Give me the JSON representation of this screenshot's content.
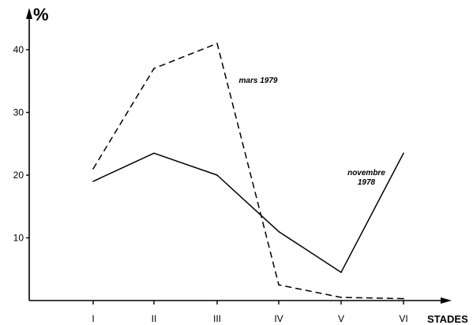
{
  "chart_data": {
    "type": "line",
    "title": "",
    "xlabel": "STADES",
    "ylabel": "%",
    "categories": [
      "I",
      "II",
      "III",
      "IV",
      "V",
      "VI"
    ],
    "ylim": [
      0,
      45
    ],
    "yticks": [
      10,
      20,
      30,
      40
    ],
    "grid": false,
    "series": [
      {
        "name": "novembre 1978",
        "style": "solid",
        "color": "#000000",
        "values": [
          19,
          23.5,
          20,
          11,
          4.5,
          23.5
        ]
      },
      {
        "name": "mars 1979",
        "style": "dashed",
        "color": "#000000",
        "values": [
          21,
          37,
          41,
          2.5,
          0.5,
          0.3
        ]
      }
    ],
    "annotations": [
      {
        "series": 1,
        "lines": [
          "mars 1979"
        ]
      },
      {
        "series": 0,
        "lines": [
          "novembre",
          "1978"
        ]
      }
    ]
  }
}
